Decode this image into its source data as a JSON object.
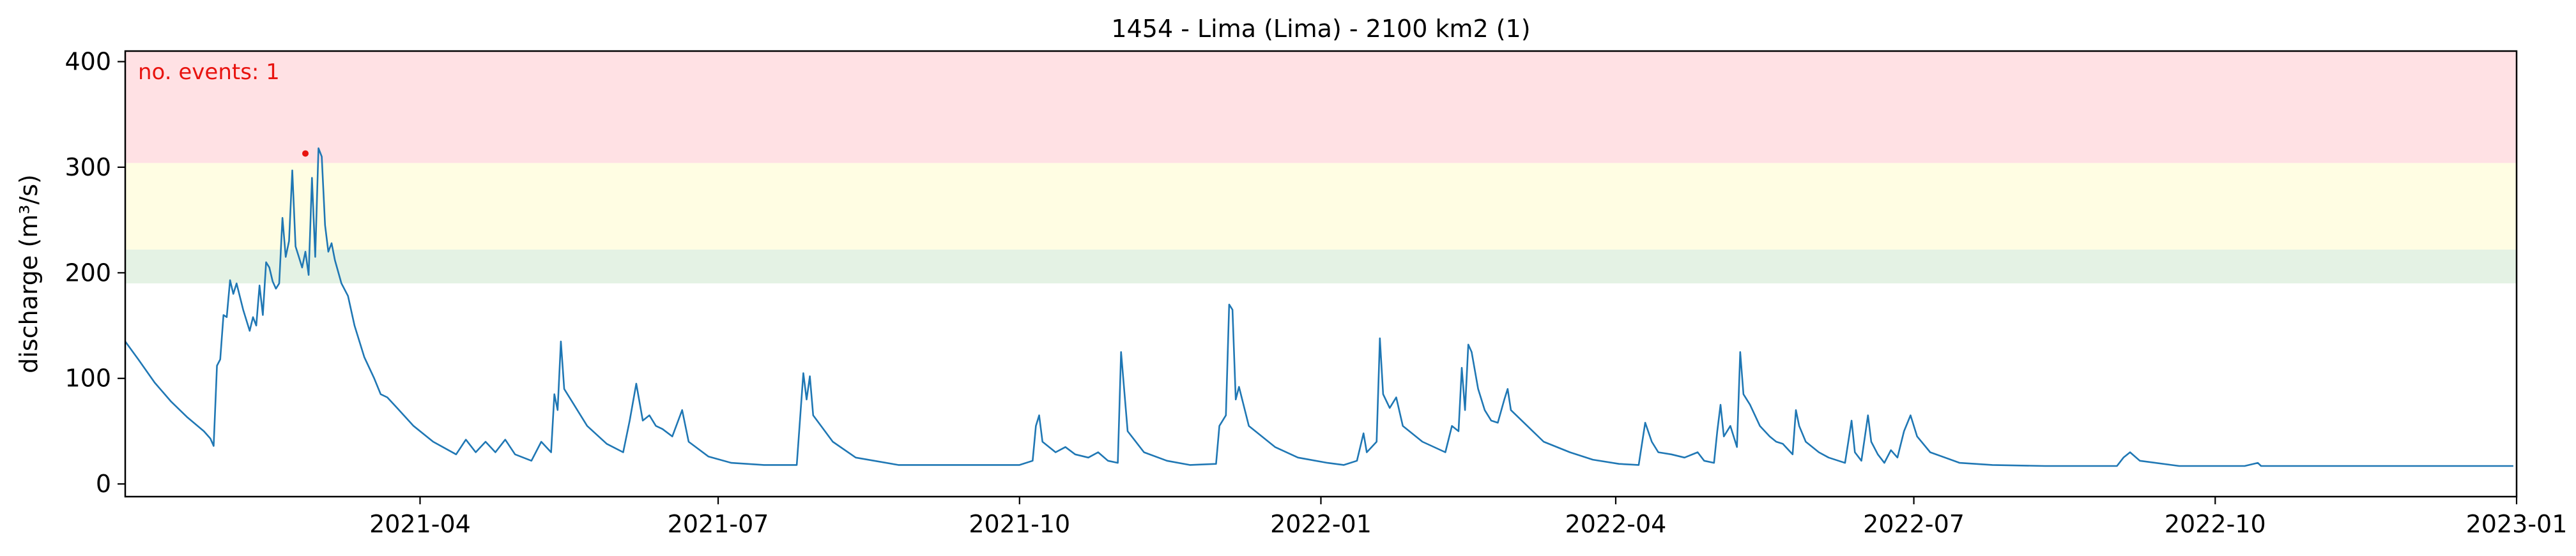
{
  "chart_data": {
    "type": "line",
    "title": "1454 - Lima (Lima) - 2100 km2 (1)",
    "xlabel": "",
    "ylabel": "discharge (m³/s)",
    "xlim": [
      "2021-01-01",
      "2023-01-01"
    ],
    "ylim": [
      -12,
      410
    ],
    "x_ticks": [
      {
        "date": "2021-04-01",
        "label": "2021-04"
      },
      {
        "date": "2021-07-01",
        "label": "2021-07"
      },
      {
        "date": "2021-10-01",
        "label": "2021-10"
      },
      {
        "date": "2022-01-01",
        "label": "2022-01"
      },
      {
        "date": "2022-04-01",
        "label": "2022-04"
      },
      {
        "date": "2022-07-01",
        "label": "2022-07"
      },
      {
        "date": "2022-10-01",
        "label": "2022-10"
      },
      {
        "date": "2023-01-01",
        "label": "2023-01"
      }
    ],
    "y_ticks": [
      {
        "value": 0,
        "label": "0"
      },
      {
        "value": 100,
        "label": "100"
      },
      {
        "value": 200,
        "label": "200"
      },
      {
        "value": 300,
        "label": "300"
      },
      {
        "value": 400,
        "label": "400"
      }
    ],
    "grid": false,
    "threshold_bands": [
      {
        "from": 190,
        "to": 222,
        "color": "#e4f2e4"
      },
      {
        "from": 222,
        "to": 304,
        "color": "#fffde3"
      },
      {
        "from": 304,
        "to": 410,
        "color": "#ffe1e4"
      }
    ],
    "annotation": {
      "text": "no. events: 1",
      "color": "#e8130f"
    },
    "events": [
      {
        "date": "2021-02-25",
        "value": 313,
        "color": "#e8130f"
      }
    ],
    "series": [
      {
        "color": "#1f77b4",
        "points": [
          [
            "2021-01-01",
            135
          ],
          [
            "2021-01-05",
            118
          ],
          [
            "2021-01-10",
            96
          ],
          [
            "2021-01-15",
            78
          ],
          [
            "2021-01-20",
            63
          ],
          [
            "2021-01-25",
            50
          ],
          [
            "2021-01-27",
            43
          ],
          [
            "2021-01-28",
            36
          ],
          [
            "2021-01-29",
            112
          ],
          [
            "2021-01-30",
            118
          ],
          [
            "2021-01-31",
            160
          ],
          [
            "2021-02-01",
            158
          ],
          [
            "2021-02-02",
            193
          ],
          [
            "2021-02-03",
            180
          ],
          [
            "2021-02-04",
            190
          ],
          [
            "2021-02-06",
            165
          ],
          [
            "2021-02-08",
            145
          ],
          [
            "2021-02-09",
            158
          ],
          [
            "2021-02-10",
            150
          ],
          [
            "2021-02-11",
            188
          ],
          [
            "2021-02-12",
            160
          ],
          [
            "2021-02-13",
            210
          ],
          [
            "2021-02-14",
            205
          ],
          [
            "2021-02-15",
            192
          ],
          [
            "2021-02-16",
            185
          ],
          [
            "2021-02-17",
            190
          ],
          [
            "2021-02-18",
            252
          ],
          [
            "2021-02-19",
            215
          ],
          [
            "2021-02-20",
            230
          ],
          [
            "2021-02-21",
            297
          ],
          [
            "2021-02-22",
            225
          ],
          [
            "2021-02-23",
            215
          ],
          [
            "2021-02-24",
            205
          ],
          [
            "2021-02-25",
            220
          ],
          [
            "2021-02-26",
            198
          ],
          [
            "2021-02-27",
            290
          ],
          [
            "2021-02-28",
            215
          ],
          [
            "2021-03-01",
            318
          ],
          [
            "2021-03-02",
            310
          ],
          [
            "2021-03-03",
            245
          ],
          [
            "2021-03-04",
            220
          ],
          [
            "2021-03-05",
            228
          ],
          [
            "2021-03-06",
            212
          ],
          [
            "2021-03-08",
            190
          ],
          [
            "2021-03-10",
            178
          ],
          [
            "2021-03-12",
            150
          ],
          [
            "2021-03-15",
            120
          ],
          [
            "2021-03-18",
            100
          ],
          [
            "2021-03-20",
            85
          ],
          [
            "2021-03-22",
            82
          ],
          [
            "2021-03-25",
            72
          ],
          [
            "2021-03-30",
            55
          ],
          [
            "2021-04-05",
            40
          ],
          [
            "2021-04-12",
            28
          ],
          [
            "2021-04-15",
            42
          ],
          [
            "2021-04-18",
            30
          ],
          [
            "2021-04-21",
            40
          ],
          [
            "2021-04-24",
            30
          ],
          [
            "2021-04-27",
            42
          ],
          [
            "2021-04-30",
            28
          ],
          [
            "2021-05-05",
            22
          ],
          [
            "2021-05-08",
            40
          ],
          [
            "2021-05-11",
            30
          ],
          [
            "2021-05-12",
            85
          ],
          [
            "2021-05-13",
            70
          ],
          [
            "2021-05-14",
            135
          ],
          [
            "2021-05-15",
            90
          ],
          [
            "2021-05-18",
            75
          ],
          [
            "2021-05-22",
            55
          ],
          [
            "2021-05-28",
            38
          ],
          [
            "2021-06-02",
            30
          ],
          [
            "2021-06-04",
            60
          ],
          [
            "2021-06-06",
            95
          ],
          [
            "2021-06-08",
            60
          ],
          [
            "2021-06-10",
            65
          ],
          [
            "2021-06-12",
            55
          ],
          [
            "2021-06-14",
            52
          ],
          [
            "2021-06-17",
            45
          ],
          [
            "2021-06-20",
            70
          ],
          [
            "2021-06-22",
            40
          ],
          [
            "2021-06-28",
            26
          ],
          [
            "2021-07-05",
            20
          ],
          [
            "2021-07-15",
            18
          ],
          [
            "2021-07-25",
            18
          ],
          [
            "2021-07-27",
            105
          ],
          [
            "2021-07-28",
            80
          ],
          [
            "2021-07-29",
            102
          ],
          [
            "2021-07-30",
            65
          ],
          [
            "2021-08-05",
            40
          ],
          [
            "2021-08-12",
            25
          ],
          [
            "2021-08-25",
            18
          ],
          [
            "2021-09-20",
            18
          ],
          [
            "2021-10-01",
            18
          ],
          [
            "2021-10-05",
            22
          ],
          [
            "2021-10-06",
            55
          ],
          [
            "2021-10-07",
            65
          ],
          [
            "2021-10-08",
            40
          ],
          [
            "2021-10-12",
            30
          ],
          [
            "2021-10-15",
            35
          ],
          [
            "2021-10-18",
            28
          ],
          [
            "2021-10-22",
            25
          ],
          [
            "2021-10-25",
            30
          ],
          [
            "2021-10-28",
            22
          ],
          [
            "2021-10-31",
            20
          ],
          [
            "2021-11-01",
            125
          ],
          [
            "2021-11-03",
            50
          ],
          [
            "2021-11-08",
            30
          ],
          [
            "2021-11-15",
            22
          ],
          [
            "2021-11-22",
            18
          ],
          [
            "2021-11-30",
            19
          ],
          [
            "2021-12-01",
            55
          ],
          [
            "2021-12-03",
            65
          ],
          [
            "2021-12-04",
            170
          ],
          [
            "2021-12-05",
            165
          ],
          [
            "2021-12-06",
            80
          ],
          [
            "2021-12-07",
            92
          ],
          [
            "2021-12-10",
            55
          ],
          [
            "2021-12-18",
            35
          ],
          [
            "2021-12-25",
            25
          ],
          [
            "2022-01-03",
            20
          ],
          [
            "2022-01-08",
            18
          ],
          [
            "2022-01-12",
            22
          ],
          [
            "2022-01-14",
            48
          ],
          [
            "2022-01-15",
            30
          ],
          [
            "2022-01-18",
            40
          ],
          [
            "2022-01-19",
            138
          ],
          [
            "2022-01-20",
            85
          ],
          [
            "2022-01-22",
            72
          ],
          [
            "2022-01-24",
            82
          ],
          [
            "2022-01-26",
            55
          ],
          [
            "2022-02-01",
            40
          ],
          [
            "2022-02-08",
            30
          ],
          [
            "2022-02-10",
            55
          ],
          [
            "2022-02-12",
            50
          ],
          [
            "2022-02-13",
            110
          ],
          [
            "2022-02-14",
            70
          ],
          [
            "2022-02-15",
            132
          ],
          [
            "2022-02-16",
            125
          ],
          [
            "2022-02-18",
            90
          ],
          [
            "2022-02-20",
            70
          ],
          [
            "2022-02-22",
            60
          ],
          [
            "2022-02-24",
            58
          ],
          [
            "2022-02-26",
            80
          ],
          [
            "2022-02-27",
            90
          ],
          [
            "2022-02-28",
            70
          ],
          [
            "2022-03-05",
            55
          ],
          [
            "2022-03-10",
            40
          ],
          [
            "2022-03-18",
            30
          ],
          [
            "2022-03-25",
            23
          ],
          [
            "2022-04-02",
            19
          ],
          [
            "2022-04-08",
            18
          ],
          [
            "2022-04-10",
            58
          ],
          [
            "2022-04-12",
            40
          ],
          [
            "2022-04-14",
            30
          ],
          [
            "2022-04-18",
            28
          ],
          [
            "2022-04-22",
            25
          ],
          [
            "2022-04-26",
            30
          ],
          [
            "2022-04-28",
            22
          ],
          [
            "2022-05-01",
            20
          ],
          [
            "2022-05-02",
            50
          ],
          [
            "2022-05-03",
            75
          ],
          [
            "2022-05-04",
            45
          ],
          [
            "2022-05-06",
            55
          ],
          [
            "2022-05-08",
            35
          ],
          [
            "2022-05-09",
            125
          ],
          [
            "2022-05-10",
            85
          ],
          [
            "2022-05-12",
            75
          ],
          [
            "2022-05-15",
            55
          ],
          [
            "2022-05-18",
            45
          ],
          [
            "2022-05-20",
            40
          ],
          [
            "2022-05-22",
            38
          ],
          [
            "2022-05-25",
            28
          ],
          [
            "2022-05-26",
            70
          ],
          [
            "2022-05-27",
            55
          ],
          [
            "2022-05-29",
            40
          ],
          [
            "2022-06-02",
            30
          ],
          [
            "2022-06-05",
            25
          ],
          [
            "2022-06-08",
            22
          ],
          [
            "2022-06-10",
            20
          ],
          [
            "2022-06-12",
            60
          ],
          [
            "2022-06-13",
            30
          ],
          [
            "2022-06-15",
            22
          ],
          [
            "2022-06-17",
            65
          ],
          [
            "2022-06-18",
            40
          ],
          [
            "2022-06-20",
            28
          ],
          [
            "2022-06-22",
            20
          ],
          [
            "2022-06-24",
            32
          ],
          [
            "2022-06-26",
            25
          ],
          [
            "2022-06-28",
            50
          ],
          [
            "2022-06-30",
            65
          ],
          [
            "2022-07-02",
            45
          ],
          [
            "2022-07-06",
            30
          ],
          [
            "2022-07-15",
            20
          ],
          [
            "2022-07-25",
            18
          ],
          [
            "2022-08-10",
            17
          ],
          [
            "2022-09-01",
            17
          ],
          [
            "2022-09-03",
            25
          ],
          [
            "2022-09-05",
            30
          ],
          [
            "2022-09-08",
            22
          ],
          [
            "2022-09-20",
            17
          ],
          [
            "2022-10-10",
            17
          ],
          [
            "2022-10-14",
            20
          ],
          [
            "2022-10-15",
            17
          ],
          [
            "2022-11-10",
            17
          ],
          [
            "2022-12-10",
            17
          ],
          [
            "2022-12-25",
            17
          ],
          [
            "2022-12-31",
            17
          ]
        ]
      }
    ]
  }
}
